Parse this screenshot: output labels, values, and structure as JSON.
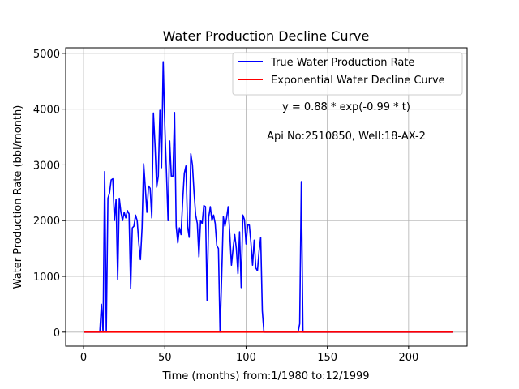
{
  "chart_data": {
    "type": "line",
    "title": "Water Production Decline Curve",
    "xlabel": "Time (months) from:1/1980 to:12/1999",
    "ylabel": "Water Production Rate (bbl/month)",
    "xlim": [
      -11,
      236
    ],
    "ylim": [
      -250,
      5100
    ],
    "xticks": [
      0,
      50,
      100,
      150,
      200
    ],
    "yticks": [
      0,
      1000,
      2000,
      3000,
      4000,
      5000
    ],
    "grid": true,
    "legend_position": "top-right",
    "annotations": [
      "y = 0.88 * exp(-0.99 * t)",
      "Api No:2510850, Well:18-AX-2"
    ],
    "series": [
      {
        "name": "True Water Production Rate",
        "color": "#0000ff",
        "x": [
          0,
          10,
          11,
          12,
          13,
          14,
          15,
          16,
          17,
          18,
          19,
          20,
          21,
          22,
          23,
          24,
          25,
          26,
          27,
          28,
          29,
          30,
          31,
          32,
          33,
          34,
          35,
          36,
          37,
          38,
          39,
          40,
          41,
          42,
          43,
          44,
          45,
          46,
          47,
          48,
          49,
          50,
          51,
          52,
          53,
          54,
          55,
          56,
          57,
          58,
          59,
          60,
          61,
          62,
          63,
          64,
          65,
          66,
          67,
          68,
          69,
          70,
          71,
          72,
          73,
          74,
          75,
          76,
          77,
          78,
          79,
          80,
          81,
          82,
          83,
          84,
          85,
          86,
          87,
          88,
          89,
          90,
          91,
          92,
          93,
          94,
          95,
          96,
          97,
          98,
          99,
          100,
          101,
          102,
          103,
          104,
          105,
          106,
          107,
          108,
          109,
          110,
          111,
          112,
          113,
          132,
          133,
          134,
          135,
          227
        ],
        "y": [
          0,
          0,
          500,
          0,
          2880,
          0,
          2400,
          2500,
          2730,
          2750,
          2000,
          2380,
          950,
          2400,
          2150,
          2000,
          2150,
          2050,
          2180,
          2120,
          780,
          1870,
          1900,
          2100,
          2000,
          1600,
          1300,
          1870,
          3020,
          2600,
          2150,
          2620,
          2580,
          2050,
          3930,
          3350,
          2600,
          2800,
          3980,
          2950,
          4850,
          3700,
          2880,
          2000,
          3430,
          2800,
          2800,
          3940,
          1900,
          1600,
          1870,
          1750,
          2350,
          2850,
          2980,
          1900,
          1700,
          3200,
          3000,
          2500,
          2100,
          1950,
          1350,
          2000,
          1950,
          2270,
          2250,
          570,
          2060,
          2250,
          2000,
          2100,
          1950,
          1550,
          1500,
          0,
          1000,
          2070,
          1900,
          2050,
          2250,
          1750,
          1200,
          1500,
          1750,
          1500,
          1050,
          1800,
          800,
          2100,
          2020,
          1580,
          1930,
          1920,
          1600,
          1200,
          1650,
          1150,
          1100,
          1450,
          1700,
          380,
          0,
          0,
          0,
          0,
          150,
          2700,
          0,
          0
        ]
      },
      {
        "name": "Exponential Water Decline Curve",
        "color": "#ff0000",
        "x": [
          0,
          227
        ],
        "y": [
          0,
          0
        ]
      }
    ]
  }
}
